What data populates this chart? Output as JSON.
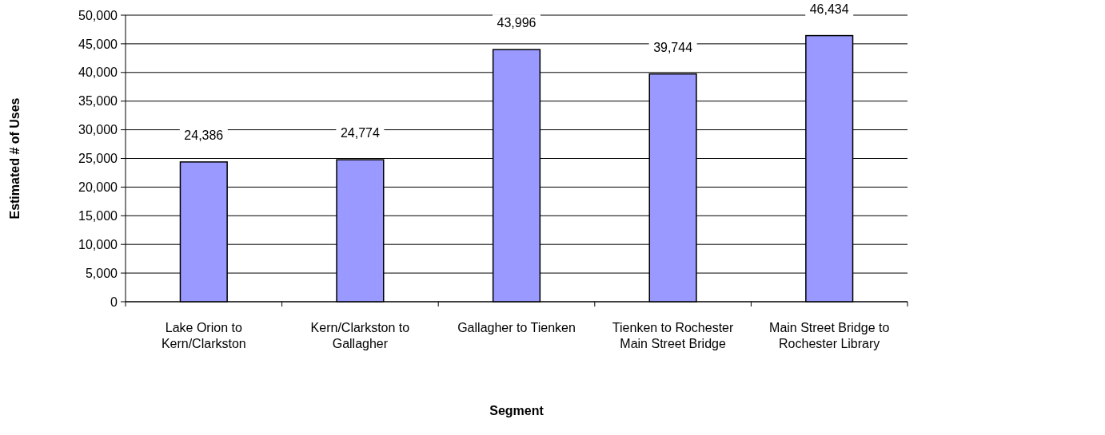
{
  "chart_data": {
    "type": "bar",
    "xlabel": "Segment",
    "ylabel": "Estimated # of Uses",
    "categories": [
      "Lake Orion to Kern/Clarkston",
      "Kern/Clarkston to Gallagher",
      "Gallagher to Tienken",
      "Tienken to Rochester Main Street Bridge",
      "Main Street Bridge to Rochester Library"
    ],
    "values": [
      24386,
      24774,
      43996,
      39744,
      46434
    ],
    "color": "#9999ff",
    "ylim": [
      0,
      50000
    ],
    "yticks": [
      {
        "value": 0,
        "label": "0"
      },
      {
        "value": 5000,
        "label": "5,000"
      },
      {
        "value": 10000,
        "label": "10,000"
      },
      {
        "value": 15000,
        "label": "15,000"
      },
      {
        "value": 20000,
        "label": "20,000"
      },
      {
        "value": 25000,
        "label": "25,000"
      },
      {
        "value": 30000,
        "label": "30,000"
      },
      {
        "value": 35000,
        "label": "35,000"
      },
      {
        "value": 40000,
        "label": "40,000"
      },
      {
        "value": 45000,
        "label": "45,000"
      },
      {
        "value": 50000,
        "label": "50,000"
      }
    ],
    "grid": "y",
    "value_labels": [
      "24,386",
      "24,774",
      "43,996",
      "39,744",
      "46,434"
    ]
  }
}
